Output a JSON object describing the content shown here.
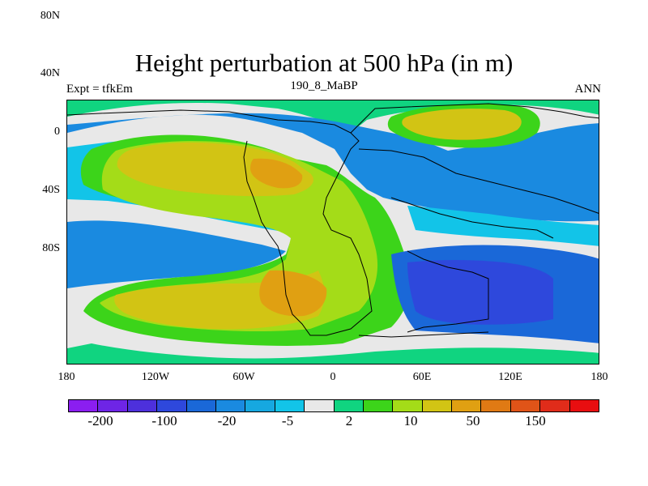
{
  "title": "Height perturbation at 500 hPa (in m)",
  "left_label": "Expt = tfkEm",
  "center_label": "190_8_MaBP",
  "right_label": "ANN",
  "y_axis_labels": [
    "80N",
    "40N",
    "0",
    "40S",
    "80S"
  ],
  "x_axis_labels": [
    "180",
    "120W",
    "60W",
    "0",
    "60E",
    "120E",
    "180"
  ],
  "colorbar": {
    "colors": [
      "#8b1ef0",
      "#6e25e6",
      "#4d30dc",
      "#2e48dc",
      "#1a68d8",
      "#1a8ae0",
      "#16a8e0",
      "#12c4e8",
      "#e8e8e8",
      "#10d480",
      "#3cd41a",
      "#a4dc18",
      "#d2c414",
      "#e0a012",
      "#e07a14",
      "#e05418",
      "#e02c1a",
      "#e80e10"
    ],
    "labels": [
      "-200",
      "-100",
      "-20",
      "-5",
      "2",
      "10",
      "50",
      "150"
    ]
  },
  "palette": {
    "background_field": "#e8e8e8",
    "deep_blue": "#1a68d8",
    "mid_blue": "#1a8ae0",
    "light_blue": "#12c4e8",
    "green": "#3cd41a",
    "yellow_green": "#a4dc18",
    "yellow": "#d2c414",
    "orange": "#e0a012"
  }
}
